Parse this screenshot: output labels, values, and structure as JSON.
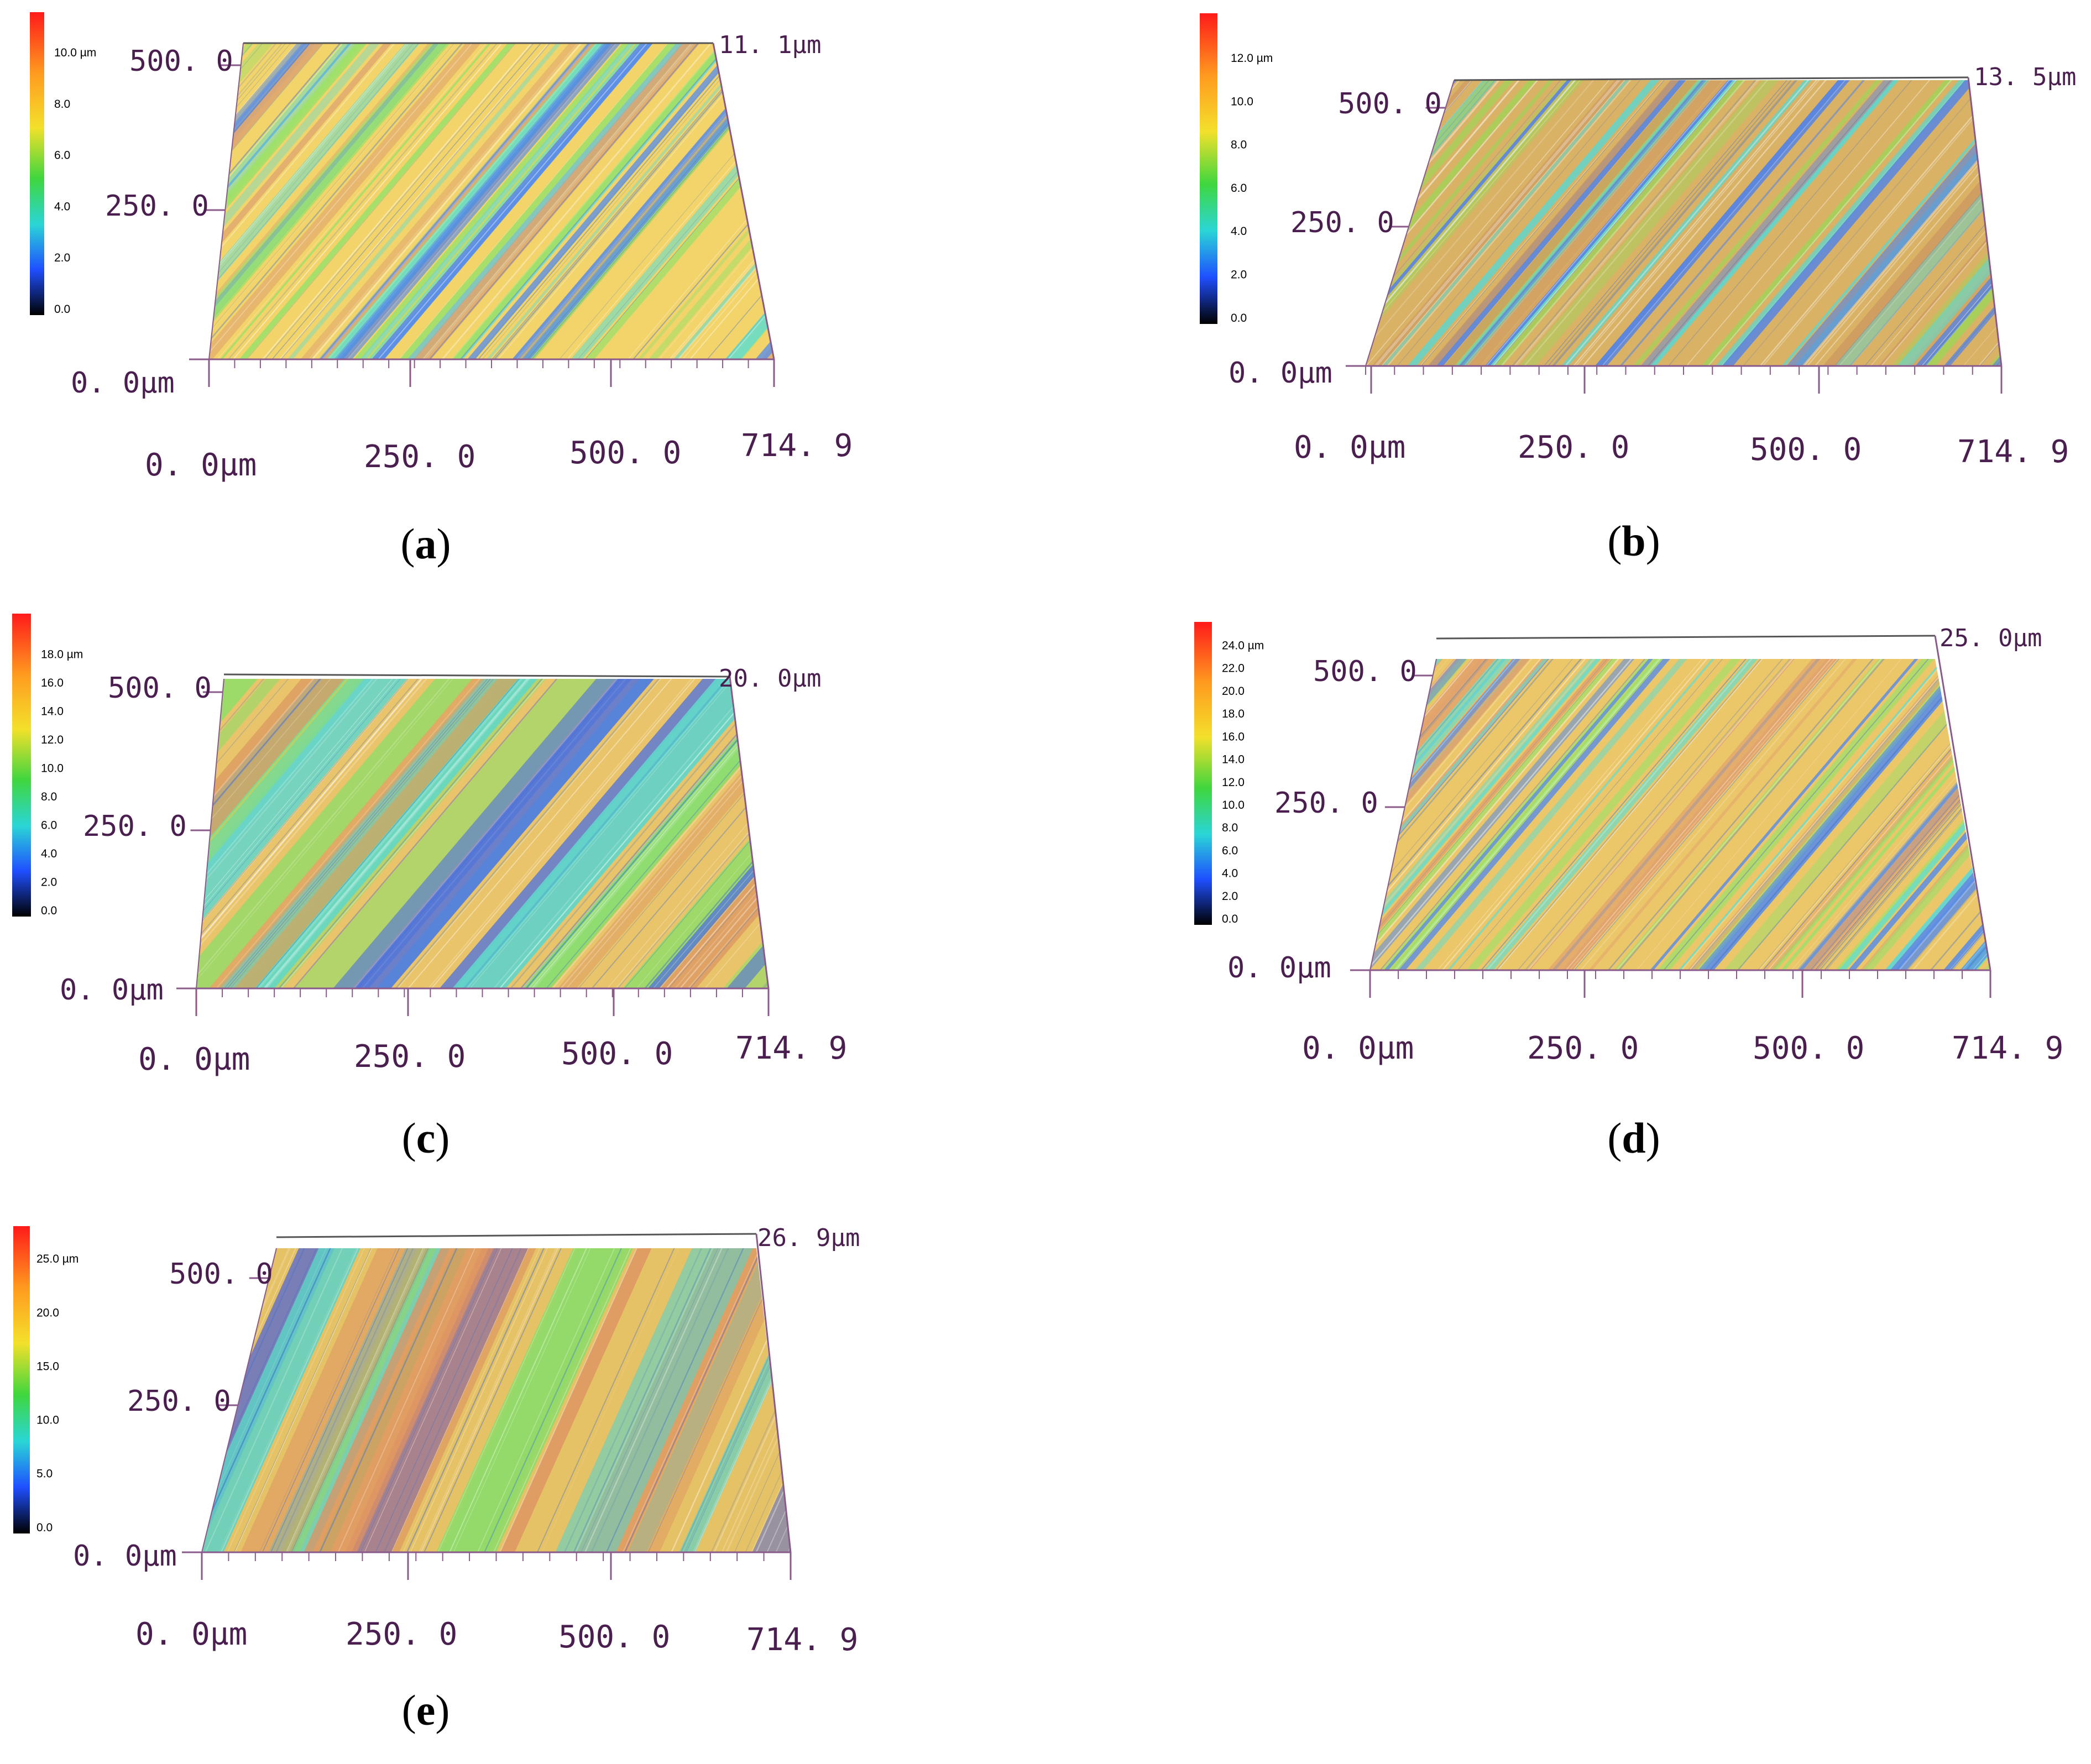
{
  "figure": {
    "panels": [
      {
        "id": "a",
        "caption": "(a)",
        "caption_letter": "a",
        "colorbar_ticks": [
          "10.0 µm",
          "8.0",
          "6.0",
          "4.0",
          "2.0",
          "0.0"
        ],
        "colorbar_max": 11.1,
        "z_max_label": "11. 1µm",
        "y_labels": [
          "500. 0",
          "250. 0",
          "0. 0µm"
        ],
        "x_labels": [
          "0. 0µm",
          "250. 0",
          "500. 0",
          "714. 9"
        ],
        "colors": [
          "#f2d46a",
          "#9ee06a",
          "#6fdcc6",
          "#e0a870",
          "#5a8ee8"
        ]
      },
      {
        "id": "b",
        "caption": "(b)",
        "caption_letter": "b",
        "colorbar_ticks": [
          "12.0 µm",
          "10.0",
          "8.0",
          "6.0",
          "4.0",
          "2.0",
          "0.0"
        ],
        "colorbar_max": 13.5,
        "z_max_label": "13. 5µm",
        "y_labels": [
          "500. 0",
          "250. 0",
          "0. 0µm"
        ],
        "x_labels": [
          "0. 0µm",
          "250. 0",
          "500. 0",
          "714. 9"
        ],
        "colors": [
          "#d9b266",
          "#a7cf5a",
          "#64d4c8",
          "#cf9a62",
          "#5b86df"
        ]
      },
      {
        "id": "c",
        "caption": "(c)",
        "caption_letter": "c",
        "colorbar_ticks": [
          "18.0 µm",
          "16.0",
          "14.0",
          "12.0",
          "10.0",
          "8.0",
          "6.0",
          "4.0",
          "2.0",
          "0.0"
        ],
        "colorbar_max": 20.0,
        "z_max_label": "20. 0µm",
        "y_labels": [
          "500. 0",
          "250. 0",
          "0. 0µm"
        ],
        "x_labels": [
          "0. 0µm",
          "250. 0",
          "500. 0",
          "714. 9"
        ],
        "colors": [
          "#e9c46a",
          "#8fdd6a",
          "#61d6cc",
          "#dc9a62",
          "#4f72de"
        ]
      },
      {
        "id": "d",
        "caption": "(d)",
        "caption_letter": "d",
        "colorbar_ticks": [
          "24.0 µm",
          "22.0",
          "20.0",
          "18.0",
          "16.0",
          "14.0",
          "12.0",
          "10.0",
          "8.0",
          "6.0",
          "4.0",
          "2.0",
          "0.0"
        ],
        "colorbar_max": 25.0,
        "z_max_label": "25. 0µm",
        "y_labels": [
          "500. 0",
          "250. 0",
          "0. 0µm"
        ],
        "x_labels": [
          "0. 0µm",
          "250. 0",
          "500. 0",
          "714. 9"
        ],
        "colors": [
          "#ebc769",
          "#9ce06b",
          "#69dccb",
          "#e1a46c",
          "#5b8de6"
        ]
      },
      {
        "id": "e",
        "caption": "(e)",
        "caption_letter": "e",
        "colorbar_ticks": [
          "25.0 µm",
          "20.0",
          "15.0",
          "10.0",
          "5.0",
          "0.0"
        ],
        "colorbar_max": 26.9,
        "z_max_label": "26. 9µm",
        "y_labels": [
          "500. 0",
          "250. 0",
          "0. 0µm"
        ],
        "x_labels": [
          "0. 0µm",
          "250. 0",
          "500. 0",
          "714. 9"
        ],
        "colors": [
          "#e6c266",
          "#8fdb6a",
          "#5ed0c6",
          "#dd9262",
          "#4860dc"
        ]
      }
    ]
  }
}
